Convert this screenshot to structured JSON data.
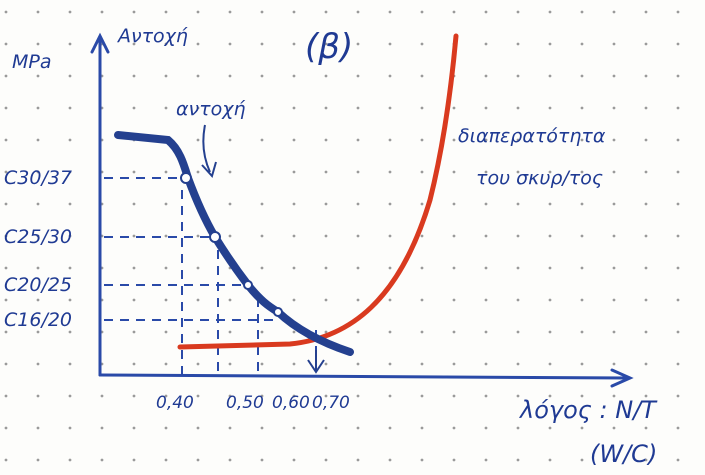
{
  "header": {
    "y_unit": "MPa",
    "y_label": "Αντοχή",
    "panel": "(β)"
  },
  "annotations": {
    "strength": "αντοχή",
    "permeability_1": "διαπερατότητα",
    "permeability_2": "του σκυρ/τος"
  },
  "y_labels": [
    "C30/37",
    "C25/30",
    "C20/25",
    "C16/20"
  ],
  "x_labels": [
    "0,40",
    "0,50",
    "0,60",
    "0,70"
  ],
  "x_axis": {
    "label": "λόγος : Ν/Τ",
    "sublabel": "(W/C)"
  }
}
